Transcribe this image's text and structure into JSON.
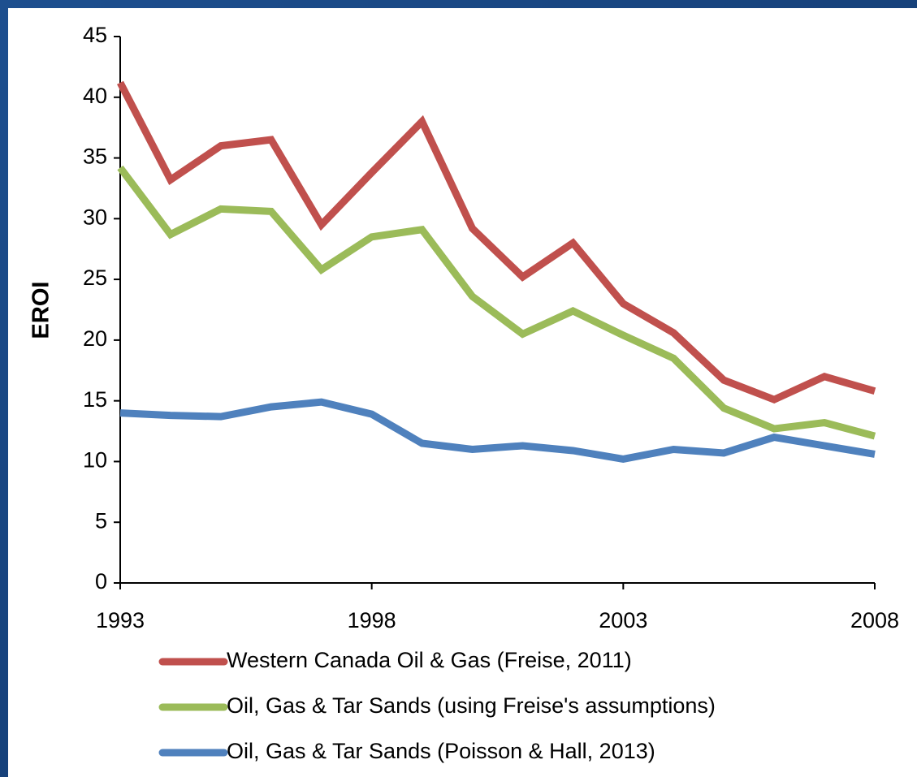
{
  "chart_data": {
    "type": "line",
    "y_label": "EROI",
    "x": [
      1993,
      1994,
      1995,
      1996,
      1997,
      1998,
      1999,
      2000,
      2001,
      2002,
      2003,
      2004,
      2005,
      2006,
      2007,
      2008
    ],
    "xlim": [
      1993,
      2008
    ],
    "xticks": [
      1993,
      1998,
      2003,
      2008
    ],
    "ylim": [
      0,
      45
    ],
    "yticks": [
      0,
      5,
      10,
      15,
      20,
      25,
      30,
      35,
      40,
      45
    ],
    "grid": false,
    "legend": "bottom",
    "series": [
      {
        "name": "Western Canada Oil & Gas (Freise, 2011)",
        "color": "#c0504d",
        "values": [
          41.2,
          33.2,
          36,
          36.5,
          29.5,
          33.8,
          38,
          29.2,
          25.2,
          28,
          23,
          20.6,
          16.7,
          15.1,
          17,
          15.8
        ]
      },
      {
        "name": "Oil, Gas & Tar Sands (using Freise's assumptions)",
        "color": "#9bbb59",
        "values": [
          34.2,
          28.7,
          30.8,
          30.6,
          25.8,
          28.5,
          29.1,
          23.6,
          20.5,
          22.4,
          20.4,
          18.5,
          14.4,
          12.7,
          13.2,
          12.1
        ]
      },
      {
        "name": "Oil, Gas & Tar Sands (Poisson & Hall, 2013)",
        "color": "#4f81bd",
        "values": [
          14,
          13.8,
          13.7,
          14.5,
          14.9,
          13.9,
          11.5,
          11,
          11.3,
          10.9,
          10.2,
          11,
          10.7,
          12,
          11.3,
          10.6
        ]
      }
    ]
  }
}
